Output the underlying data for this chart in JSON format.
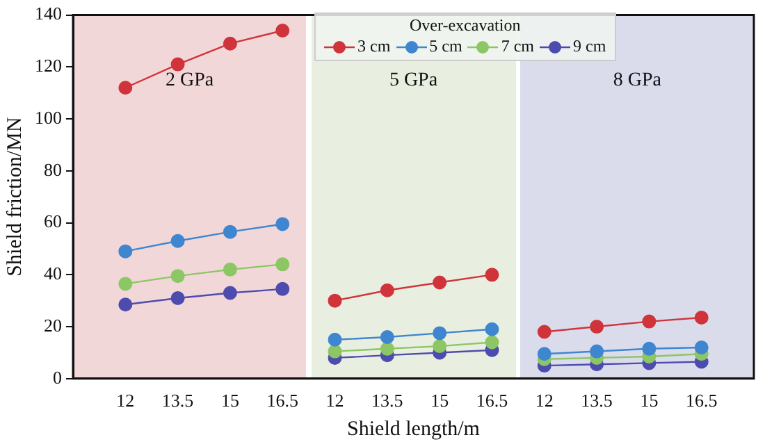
{
  "chart_data": {
    "type": "line",
    "xlabel": "Shield length/m",
    "ylabel": "Shield friction/MN",
    "legend_title": "Over-excavation",
    "legend": "top",
    "marker": "circle",
    "grid": false,
    "categories": [
      "12",
      "13.5",
      "15",
      "16.5",
      "12",
      "13.5",
      "15",
      "16.5",
      "12",
      "13.5",
      "15",
      "16.5"
    ],
    "ylim": [
      0,
      140
    ],
    "yticks": [
      0,
      20,
      40,
      60,
      80,
      100,
      120,
      140
    ],
    "annotations": [
      "2 GPa",
      "5 GPa",
      "8 GPa"
    ],
    "series": [
      {
        "name": "3 cm",
        "color": "#d0343a",
        "values": [
          112,
          121,
          129,
          134,
          30,
          34,
          37,
          40,
          18,
          20,
          22,
          23.5
        ]
      },
      {
        "name": "5 cm",
        "color": "#3f86d0",
        "values": [
          49,
          53,
          56.5,
          59.5,
          15,
          16,
          17.5,
          19,
          9.5,
          10.5,
          11.5,
          12
        ]
      },
      {
        "name": "7 cm",
        "color": "#8cc665",
        "values": [
          36.5,
          39.5,
          42,
          44,
          10.5,
          11.5,
          12.5,
          14,
          7.5,
          8,
          8.5,
          9.5
        ]
      },
      {
        "name": "9 cm",
        "color": "#4d4cae",
        "values": [
          28.5,
          31,
          33,
          34.5,
          8,
          9,
          10,
          11,
          5,
          5.5,
          6,
          6.5
        ]
      }
    ]
  }
}
